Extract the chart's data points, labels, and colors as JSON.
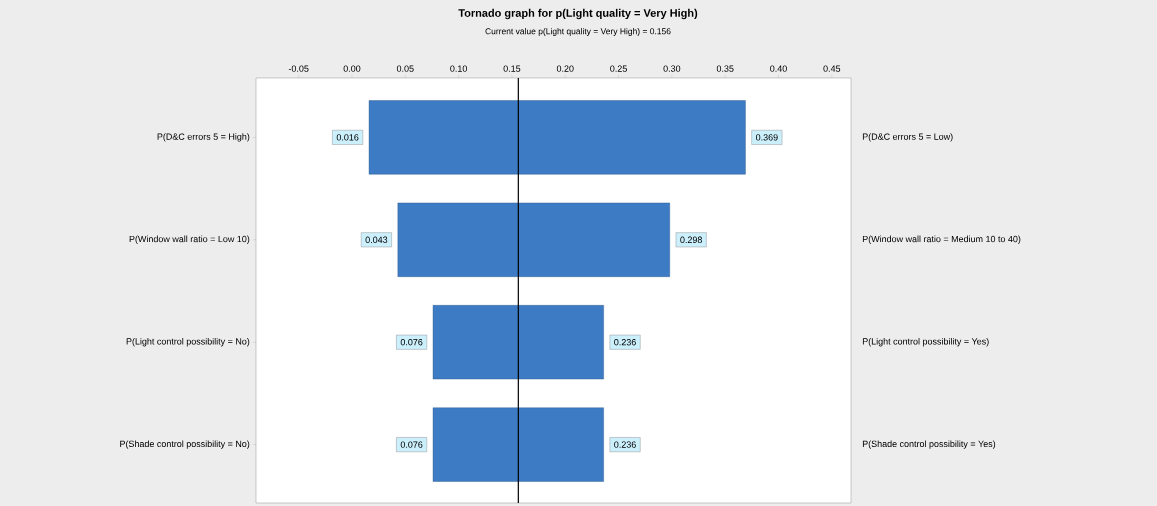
{
  "chart_data": {
    "type": "bar",
    "orientation": "horizontal",
    "title": "Tornado graph for p(Light quality = Very High)",
    "subtitle": "Current value p(Light quality = Very High) = 0.156",
    "categories": [
      "P(D&C errors 5 = High)",
      "P(Window wall ratio = Low 10)",
      "P(Light control possibility = No)",
      "P(Shade control possibility = No)"
    ],
    "base": [
      0.016,
      0.043,
      0.076,
      0.076
    ],
    "values": [
      0.353,
      0.255,
      0.16,
      0.16
    ],
    "color": "#3d7cc4",
    "xlim": [
      -0.09,
      0.468
    ],
    "xticks": [
      {
        "value": -0.05,
        "label": "-0.05"
      },
      {
        "value": 0,
        "label": "0.00"
      },
      {
        "value": 0.05,
        "label": "0.05"
      },
      {
        "value": 0.1,
        "label": "0.10"
      },
      {
        "value": 0.15,
        "label": "0.15"
      },
      {
        "value": 0.2,
        "label": "0.20"
      },
      {
        "value": 0.25,
        "label": "0.25"
      },
      {
        "value": 0.3,
        "label": "0.30"
      },
      {
        "value": 0.35,
        "label": "0.35"
      },
      {
        "value": 0.4,
        "label": "0.40"
      },
      {
        "value": 0.45,
        "label": "0.45"
      }
    ],
    "ref_lines": [
      {
        "axis": "x",
        "value": 0.156,
        "color": "#000000"
      }
    ],
    "value_labels": [
      "0.369",
      "0.298",
      "0.236",
      "0.236"
    ],
    "annotations": [
      {
        "text": "0.016",
        "x": 0.016,
        "y": "P(D&C errors 5 = High)"
      },
      {
        "text": "0.043",
        "x": 0.043,
        "y": "P(Window wall ratio = Low 10)"
      },
      {
        "text": "0.076",
        "x": 0.076,
        "y": "P(Light control possibility = No)"
      },
      {
        "text": "0.076",
        "x": 0.076,
        "y": "P(Shade control possibility = No)"
      },
      "P(D&C errors 5 = Low)",
      "P(Window wall ratio = Medium 10 to 40)",
      "P(Light control possibility = Yes)",
      "P(Shade control possibility = Yes)"
    ]
  }
}
